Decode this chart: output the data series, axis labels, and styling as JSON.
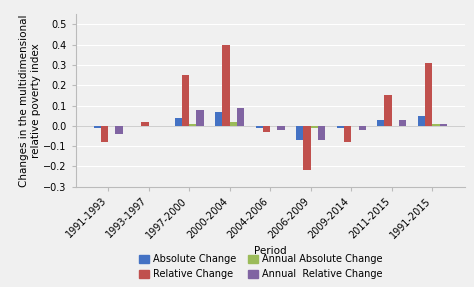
{
  "periods": [
    "1991-1993",
    "1993-1997",
    "1997-2000",
    "2000-2004",
    "2004-2006",
    "2006-2009",
    "2009-2014",
    "2011-2015",
    "1991-2015"
  ],
  "absolute_change": [
    -0.01,
    0.0,
    0.04,
    0.07,
    -0.01,
    -0.07,
    -0.01,
    0.03,
    0.05
  ],
  "relative_change": [
    -0.08,
    0.02,
    0.25,
    0.4,
    -0.03,
    -0.22,
    -0.08,
    0.15,
    0.31
  ],
  "annual_absolute_change": [
    0.0,
    0.0,
    0.01,
    0.02,
    0.0,
    -0.01,
    0.0,
    0.0,
    0.01
  ],
  "annual_relative_change": [
    -0.04,
    0.0,
    0.08,
    0.09,
    -0.02,
    -0.07,
    -0.02,
    0.03,
    0.01
  ],
  "colors": {
    "absolute_change": "#4472C4",
    "relative_change": "#C0504D",
    "annual_absolute_change": "#9BBB59",
    "annual_relative_change": "#8064A2"
  },
  "legend_labels": [
    "Absolute Change",
    "Relative Change",
    "Annual Absolute Change",
    "Annual  Relative Change"
  ],
  "xlabel": "Period",
  "ylabel": "Changes in the multidimensional\nrelative poverty index",
  "ylim": [
    -0.3,
    0.55
  ],
  "yticks": [
    -0.3,
    -0.2,
    -0.1,
    0.0,
    0.1,
    0.2,
    0.3,
    0.4,
    0.5
  ],
  "bar_width": 0.18,
  "background_color": "#f0f0f0",
  "axis_fontsize": 7.5,
  "tick_fontsize": 7,
  "legend_fontsize": 7
}
